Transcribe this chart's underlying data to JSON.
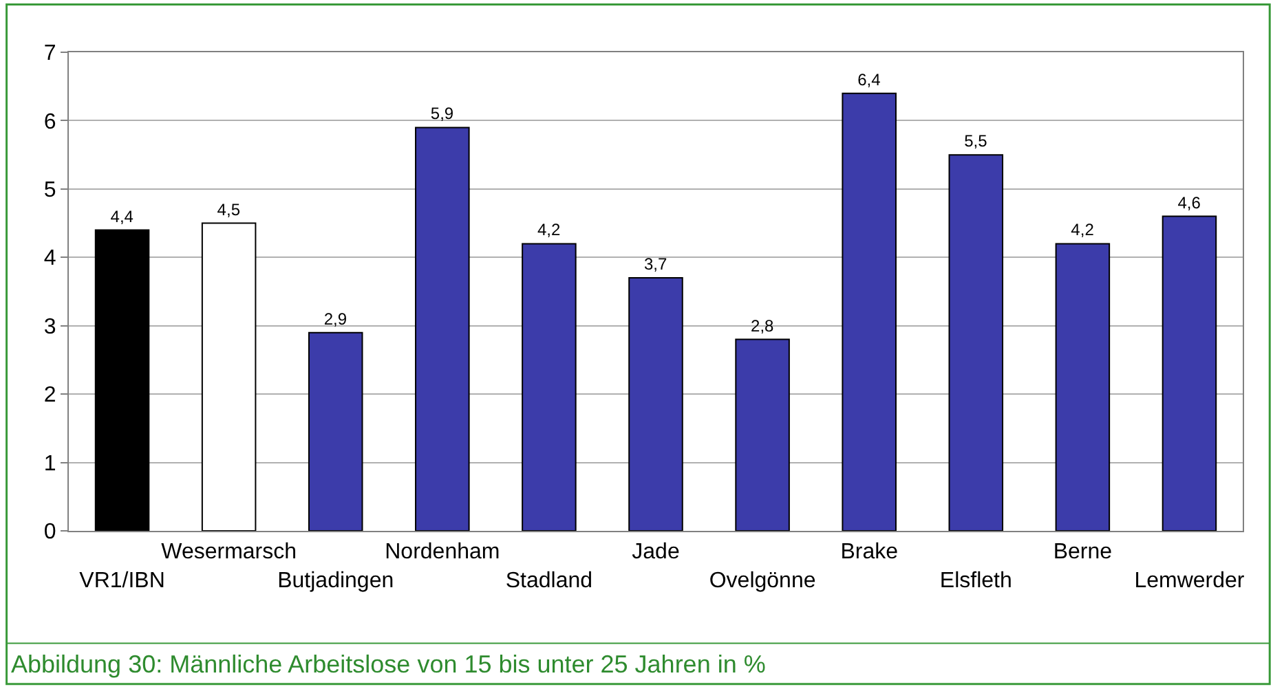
{
  "chart_data": {
    "type": "bar",
    "categories": [
      "VR1/IBN",
      "Wesermarsch",
      "Butjadingen",
      "Nordenham",
      "Stadland",
      "Jade",
      "Ovelgönne",
      "Brake",
      "Elsfleth",
      "Berne",
      "Lemwerder"
    ],
    "values": [
      4.4,
      4.5,
      2.9,
      5.9,
      4.2,
      3.7,
      2.8,
      6.4,
      5.5,
      4.2,
      4.6
    ],
    "value_labels": [
      "4,4",
      "4,5",
      "2,9",
      "5,9",
      "4,2",
      "3,7",
      "2,8",
      "6,4",
      "5,5",
      "4,2",
      "4,6"
    ],
    "colors": [
      "#000000",
      "#ffffff",
      "#3c3caa",
      "#3c3caa",
      "#3c3caa",
      "#3c3caa",
      "#3c3caa",
      "#3c3caa",
      "#3c3caa",
      "#3c3caa",
      "#3c3caa"
    ],
    "ylim": [
      0,
      7
    ],
    "yticks": [
      0,
      1,
      2,
      3,
      4,
      5,
      6,
      7
    ],
    "grid": "y",
    "legend": false,
    "annotations": [
      "Abbildung 30: Männliche Arbeitslose von 15 bis unter 25 Jahren in %"
    ]
  }
}
